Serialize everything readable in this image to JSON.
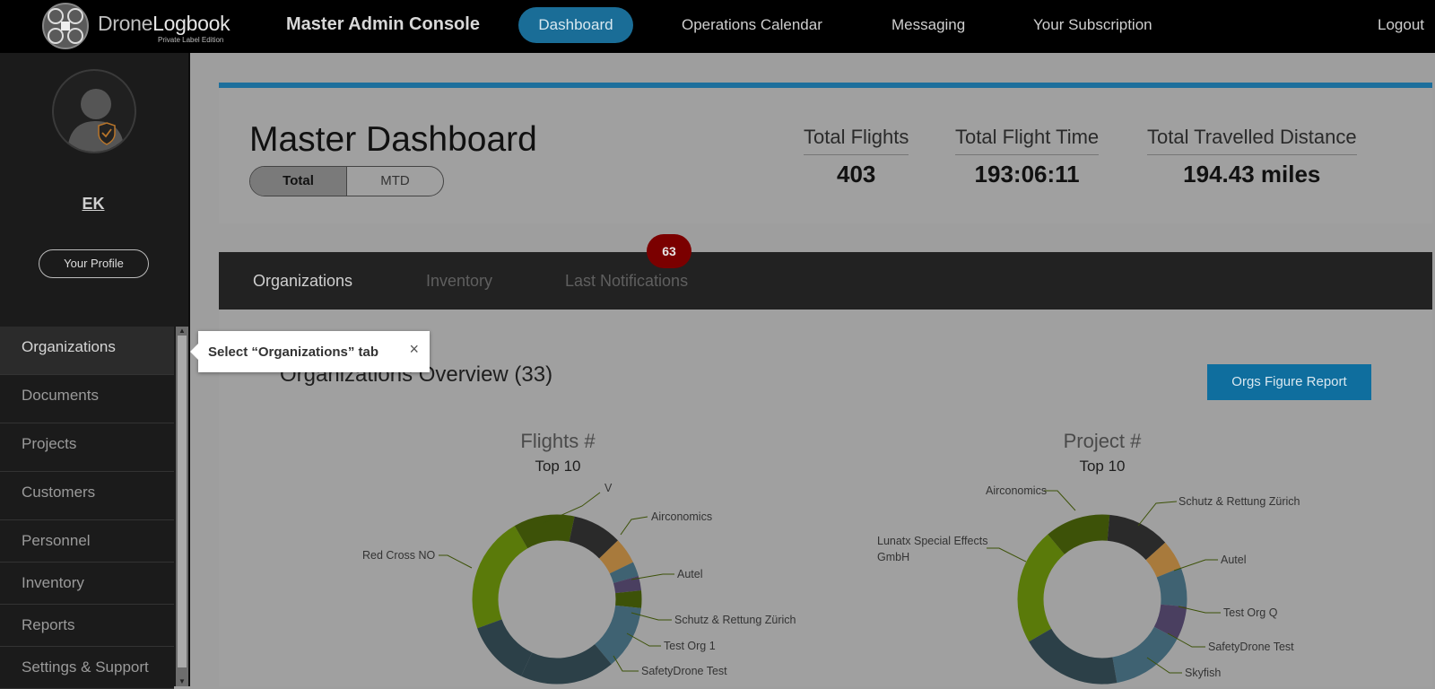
{
  "header": {
    "logo_part1": "Drone",
    "logo_part2": "Logbook",
    "logo_sub": "Private Label Edition",
    "console_title": "Master Admin Console",
    "nav": [
      "Dashboard",
      "Operations Calendar",
      "Messaging",
      "Your Subscription"
    ],
    "logout": "Logout"
  },
  "sidebar": {
    "user_initials": "EK",
    "profile_button": "Your Profile",
    "items": [
      "Organizations",
      "Documents",
      "Projects",
      "Customers",
      "Personnel",
      "Inventory",
      "Reports",
      "Settings & Support"
    ],
    "active_item": "Organizations"
  },
  "tooltip": {
    "text": "Select “Organizations” tab",
    "close": "×"
  },
  "dashboard": {
    "title": "Master Dashboard",
    "toggle": [
      "Total",
      "MTD"
    ],
    "stats": [
      {
        "label": "Total Flights",
        "value": "403"
      },
      {
        "label": "Total Flight Time",
        "value": "193:06:11"
      },
      {
        "label": "Total Travelled Distance",
        "value": "194.43 miles"
      }
    ]
  },
  "tabs": {
    "items": [
      "Organizations",
      "Inventory",
      "Last Notifications"
    ],
    "notification_badge": "63"
  },
  "overview": {
    "title": "Organizations Overview (33)",
    "report_button": "Orgs Figure Report"
  },
  "chart_data": [
    {
      "type": "pie",
      "title": "Flights #",
      "subtitle": "Top 10",
      "categories": [
        "V",
        "Airconomics",
        "Autel",
        "Schutz & Rettung Zürich",
        "Test Org 1",
        "SafetyDrone Test",
        "Red Cross NO"
      ],
      "colors": [
        "#5a7a0a",
        "#3d5208",
        "#2a2a2a",
        "#a87a3c",
        "#3f6272",
        "#4a3f60",
        "#2c4048"
      ],
      "visible_labels": [
        "V",
        "Airconomics",
        "Autel",
        "Schutz & Rettung Zürich",
        "Test Org 1",
        "SafetyDrone Test",
        "Red Cross NO"
      ]
    },
    {
      "type": "pie",
      "title": "Project #",
      "subtitle": "Top 10",
      "categories": [
        "Airconomics",
        "Schutz & Rettung Zürich",
        "Autel",
        "Test Org Q",
        "SafetyDrone Test",
        "Skyfish",
        "Lunatx Special Effects GmbH"
      ],
      "colors": [
        "#5a7a0a",
        "#3d5208",
        "#2a2a2a",
        "#a87a3c",
        "#3f6272",
        "#4a3f60",
        "#2c4048"
      ],
      "visible_labels": [
        "Airconomics",
        "Schutz & Rettung Zürich",
        "Autel",
        "Test Org Q",
        "SafetyDrone Test",
        "Skyfish",
        "Lunatx Special Effects GmbH"
      ]
    }
  ]
}
